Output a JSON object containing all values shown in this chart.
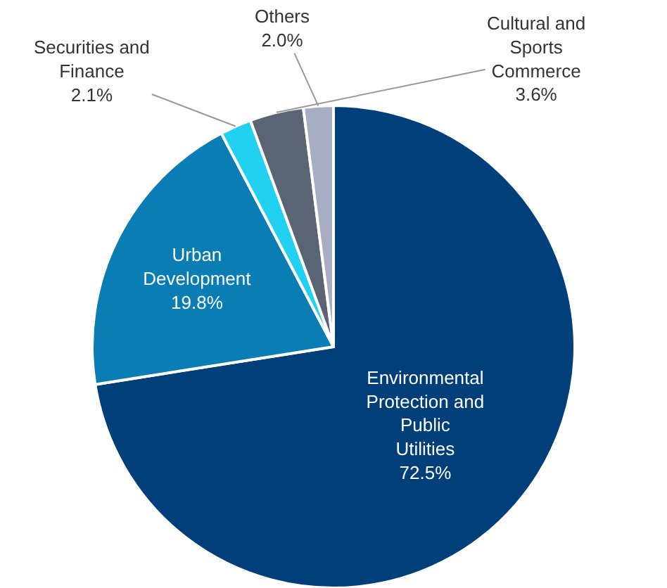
{
  "chart_data": {
    "type": "pie",
    "categories": [
      "Environmental Protection and Public Utilities",
      "Urban Development",
      "Securities and Finance",
      "Cultural and Sports Commerce",
      "Others"
    ],
    "values": [
      72.5,
      19.8,
      2.1,
      3.6,
      2.0
    ],
    "value_labels": [
      "72.5%",
      "19.8%",
      "2.1%",
      "3.6%",
      "2.0%"
    ],
    "colors": [
      "#003f7a",
      "#0a7db5",
      "#22d0f2",
      "#5b6475",
      "#a9adc4"
    ],
    "legend": false
  }
}
